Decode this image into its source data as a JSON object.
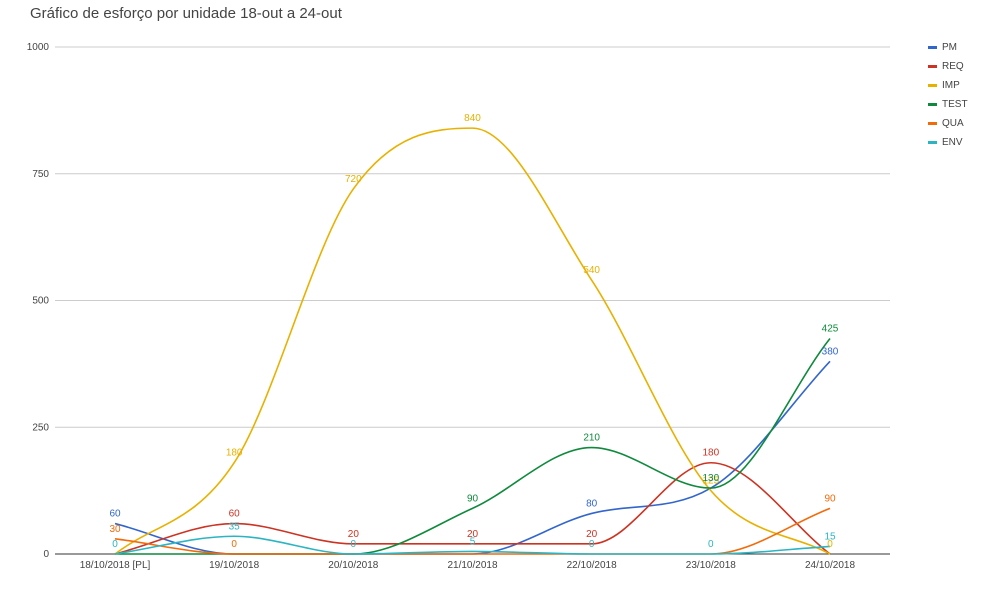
{
  "chart_data": {
    "type": "line",
    "title": "Gráfico de esforço por unidade 18-out a 24-out",
    "xlabel": "",
    "ylabel": "",
    "categories": [
      "18/10/2018 [PL]",
      "19/10/2018",
      "20/10/2018",
      "21/10/2018",
      "22/10/2018",
      "23/10/2018",
      "24/10/2018"
    ],
    "ylim": [
      0,
      1000
    ],
    "yticks": [
      0,
      250,
      500,
      750,
      1000
    ],
    "grid": true,
    "legend": "right",
    "series": [
      {
        "name": "PM",
        "color": "#3366cc",
        "values": [
          60,
          0,
          0,
          0,
          80,
          130,
          380
        ],
        "labels": [
          "60",
          "",
          "",
          "",
          "80",
          "",
          "380"
        ]
      },
      {
        "name": "REQ",
        "color": "#cc3322",
        "values": [
          0,
          60,
          20,
          20,
          20,
          180,
          0
        ],
        "labels": [
          "",
          "60",
          "20",
          "20",
          "20",
          "180",
          ""
        ]
      },
      {
        "name": "IMP",
        "color": "#e8b100",
        "values": [
          0,
          180,
          720,
          840,
          540,
          125,
          0
        ],
        "labels": [
          "",
          "180",
          "720",
          "840",
          "540",
          "125",
          "0"
        ]
      },
      {
        "name": "TEST",
        "color": "#0f8a3c",
        "values": [
          0,
          0,
          0,
          90,
          210,
          130,
          425
        ],
        "labels": [
          "",
          "",
          "",
          "90",
          "210",
          "130",
          "425"
        ]
      },
      {
        "name": "QUA",
        "color": "#f26a0a",
        "values": [
          30,
          0,
          0,
          0,
          0,
          0,
          90
        ],
        "labels": [
          "30",
          "0",
          "",
          "",
          "",
          "",
          "90"
        ]
      },
      {
        "name": "ENV",
        "color": "#2bb5c2",
        "values": [
          0,
          35,
          0,
          5,
          0,
          0,
          15
        ],
        "labels": [
          "0",
          "35",
          "0",
          "5",
          "0",
          "0",
          "15"
        ]
      }
    ]
  }
}
